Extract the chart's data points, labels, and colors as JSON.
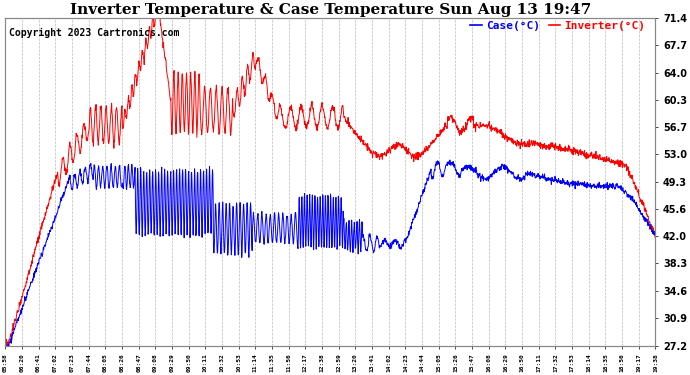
{
  "title": "Inverter Temperature & Case Temperature Sun Aug 13 19:47",
  "copyright": "Copyright 2023 Cartronics.com",
  "ylabel_right_ticks": [
    27.2,
    30.9,
    34.6,
    38.3,
    42.0,
    45.6,
    49.3,
    53.0,
    56.7,
    60.3,
    64.0,
    67.7,
    71.4
  ],
  "ylim": [
    27.2,
    71.4
  ],
  "legend_case_label": "Case(°C)",
  "legend_inverter_label": "Inverter(°C)",
  "case_color": "blue",
  "inverter_color": "red",
  "background_color": "#ffffff",
  "grid_color": "#bbbbbb",
  "title_fontsize": 11,
  "copyright_fontsize": 7,
  "legend_fontsize": 8,
  "tick_labels": [
    "05:58",
    "06:20",
    "06:41",
    "07:02",
    "07:23",
    "07:44",
    "08:05",
    "08:26",
    "08:47",
    "09:08",
    "09:29",
    "09:50",
    "10:11",
    "10:32",
    "10:53",
    "11:14",
    "11:35",
    "11:56",
    "12:17",
    "12:38",
    "12:59",
    "13:20",
    "13:41",
    "14:02",
    "14:23",
    "14:44",
    "15:05",
    "15:26",
    "15:47",
    "16:08",
    "16:29",
    "16:50",
    "17:11",
    "17:32",
    "17:53",
    "18:14",
    "18:35",
    "18:56",
    "19:17",
    "19:38"
  ]
}
